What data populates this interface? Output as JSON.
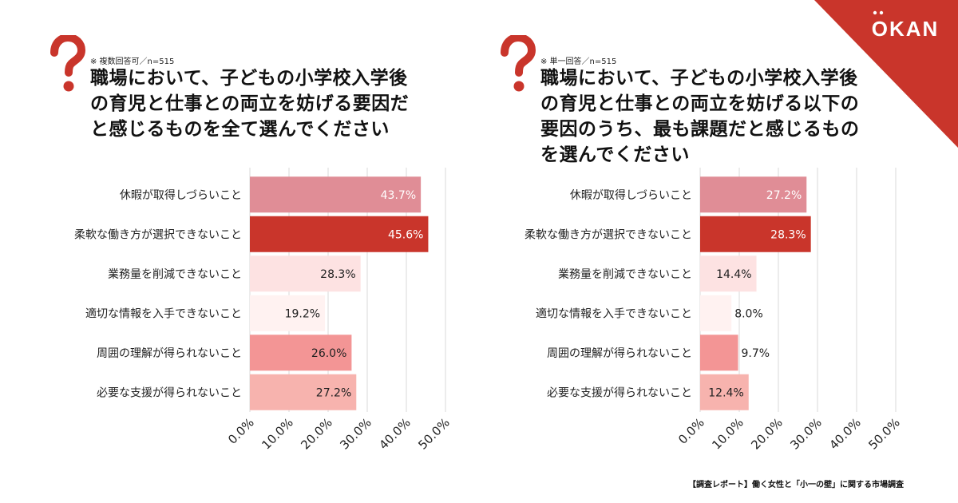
{
  "brand": {
    "logo_text": "OKAN",
    "accent_color": "#c9352b"
  },
  "panels": [
    {
      "note": "※ 複数回答可／n=515",
      "question_lines": [
        "職場において、子どもの小学校入学後",
        "の育児と仕事との両立を妨げる要因だ",
        "と感じるものを全て選んでください"
      ]
    },
    {
      "note": "※ 単一回答／n=515",
      "question_lines": [
        "職場において、子どもの小学校入学後",
        "の育児と仕事との両立を妨げる以下の",
        "要因のうち、最も課題だと感じるもの",
        "を選んでください"
      ]
    }
  ],
  "chart_data": [
    {
      "type": "bar",
      "orientation": "horizontal",
      "title": "職場において、子どもの小学校入学後の育児と仕事との両立を妨げる要因だと感じるものを全て選んでください",
      "categories": [
        "休暇が取得しづらいこと",
        "柔軟な働き方が選択できないこと",
        "業務量を削減できないこと",
        "適切な情報を入手できないこと",
        "周囲の理解が得られないこと",
        "必要な支援が得られないこと"
      ],
      "values": [
        43.7,
        45.6,
        28.3,
        19.2,
        26.0,
        27.2
      ],
      "value_labels": [
        "43.7%",
        "45.6%",
        "28.3%",
        "19.2%",
        "26.0%",
        "27.2%"
      ],
      "bar_colors": [
        "#e08d96",
        "#c9352b",
        "#fde2e2",
        "#fff2f1",
        "#f39595",
        "#f7b3ae"
      ],
      "label_colors": [
        "#ffffff",
        "#ffffff",
        "#222222",
        "#222222",
        "#222222",
        "#222222"
      ],
      "xlim": [
        0,
        50
      ],
      "tick_values": [
        0,
        10,
        20,
        30,
        40,
        50
      ],
      "tick_labels": [
        "0.0%",
        "10.0%",
        "20.0%",
        "30.0%",
        "40.0%",
        "50.0%"
      ],
      "grid": true
    },
    {
      "type": "bar",
      "orientation": "horizontal",
      "title": "職場において、子どもの小学校入学後の育児と仕事との両立を妨げる以下の要因のうち、最も課題だと感じるものを選んでください",
      "categories": [
        "休暇が取得しづらいこと",
        "柔軟な働き方が選択できないこと",
        "業務量を削減できないこと",
        "適切な情報を入手できないこと",
        "周囲の理解が得られないこと",
        "必要な支援が得られないこと"
      ],
      "values": [
        27.2,
        28.3,
        14.4,
        8.0,
        9.7,
        12.4
      ],
      "value_labels": [
        "27.2%",
        "28.3%",
        "14.4%",
        "8.0%",
        "9.7%",
        "12.4%"
      ],
      "bar_colors": [
        "#e08d96",
        "#c9352b",
        "#fde2e2",
        "#fff2f1",
        "#f39595",
        "#f7b3ae"
      ],
      "label_colors": [
        "#ffffff",
        "#ffffff",
        "#222222",
        "#222222",
        "#222222",
        "#222222"
      ],
      "xlim": [
        0,
        50
      ],
      "tick_values": [
        0,
        10,
        20,
        30,
        40,
        50
      ],
      "tick_labels": [
        "0.0%",
        "10.0%",
        "20.0%",
        "30.0%",
        "40.0%",
        "50.0%"
      ],
      "grid": true
    }
  ],
  "footer": "【調査レポート】働く女性と「小一の壁」に関する市場調査"
}
